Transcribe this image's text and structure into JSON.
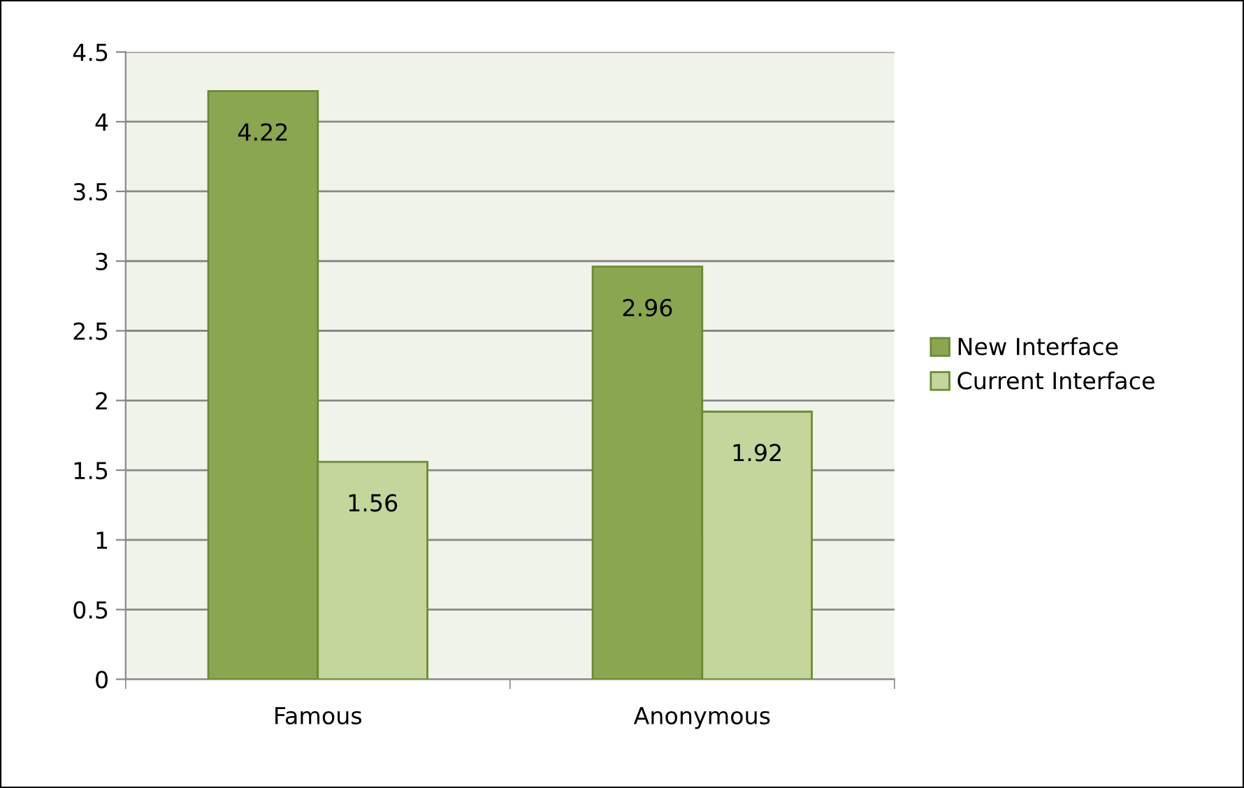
{
  "chart_data": {
    "type": "bar",
    "categories": [
      "Famous",
      "Anonymous"
    ],
    "series": [
      {
        "name": "New Interface",
        "color": "#8aa64e",
        "values": [
          4.22,
          2.96
        ]
      },
      {
        "name": "Current Interface",
        "color": "#c3d69b",
        "values": [
          1.56,
          1.92
        ]
      }
    ],
    "ylim": [
      0,
      4.5
    ],
    "yticks": [
      0,
      0.5,
      1,
      1.5,
      2,
      2.5,
      3,
      3.5,
      4,
      4.5
    ],
    "grid": "y",
    "legend": "right",
    "data_labels": true
  }
}
